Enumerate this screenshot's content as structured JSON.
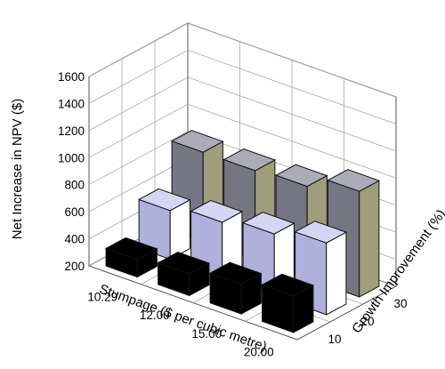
{
  "chart_data": {
    "type": "bar",
    "subtype": "3d-column",
    "x_axis": {
      "label": "Stumpage ($ per cubic metre)",
      "categories": [
        "10.29",
        "12.00",
        "15.00",
        "20.00"
      ]
    },
    "depth_axis": {
      "label": "Growth Improvement (%)",
      "categories": [
        "10",
        "20",
        "30"
      ]
    },
    "z_axis": {
      "label": "Net Increase in NPV ($)",
      "ticks": [
        "200",
        "400",
        "600",
        "800",
        "1000",
        "1200",
        "1400",
        "1600"
      ],
      "zlim": [
        200,
        1600
      ]
    },
    "grid": true,
    "series": [
      {
        "depth": "10",
        "values": [
          330,
          360,
          420,
          470
        ],
        "color": "#000000"
      },
      {
        "depth": "20",
        "values": [
          560,
          610,
          660,
          730
        ],
        "color": "#bfbfef"
      },
      {
        "depth": "30",
        "values": [
          860,
          860,
          880,
          980
        ],
        "color": "#7f7f8f"
      }
    ]
  }
}
